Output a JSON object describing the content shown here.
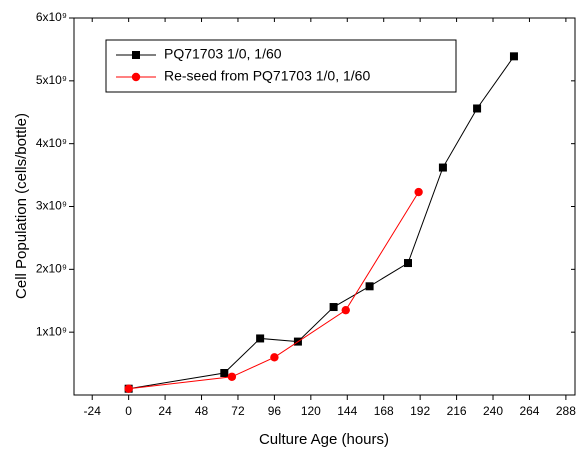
{
  "chart_data": {
    "type": "line",
    "xlabel": "Culture Age (hours)",
    "ylabel": "Cell Population (cells/bottle)",
    "xlim": [
      -36,
      294
    ],
    "xticks": [
      -24,
      0,
      24,
      48,
      72,
      96,
      120,
      144,
      168,
      192,
      216,
      240,
      264,
      288
    ],
    "ylim": [
      0,
      6000000000
    ],
    "yticks": [
      {
        "value": 1000000000,
        "label": "1x10⁹"
      },
      {
        "value": 2000000000,
        "label": "2x10⁹"
      },
      {
        "value": 3000000000,
        "label": "3x10⁹"
      },
      {
        "value": 4000000000,
        "label": "4x10⁹"
      },
      {
        "value": 5000000000,
        "label": "5x10⁹"
      },
      {
        "value": 6000000000,
        "label": "6x10⁹"
      }
    ],
    "legend": "upper left",
    "series": [
      {
        "name": "PQ71703 1/0, 1/60",
        "color": "#000000",
        "marker": "square",
        "x": [
          0,
          63,
          86.6,
          111.5,
          135,
          158.7,
          184,
          207,
          229.5,
          253.8
        ],
        "values": [
          100000000,
          350000000,
          900000000,
          850000000,
          1400000000,
          1730000000,
          2100000000,
          3620000000,
          4560000000,
          5390000000
        ]
      },
      {
        "name": "Re-seed from PQ71703 1/0, 1/60",
        "color": "#ff0000",
        "marker": "circle",
        "x": [
          0,
          68,
          96,
          143,
          191
        ],
        "values": [
          100000000,
          290000000,
          600000000,
          1350000000,
          3230000000
        ]
      }
    ]
  }
}
